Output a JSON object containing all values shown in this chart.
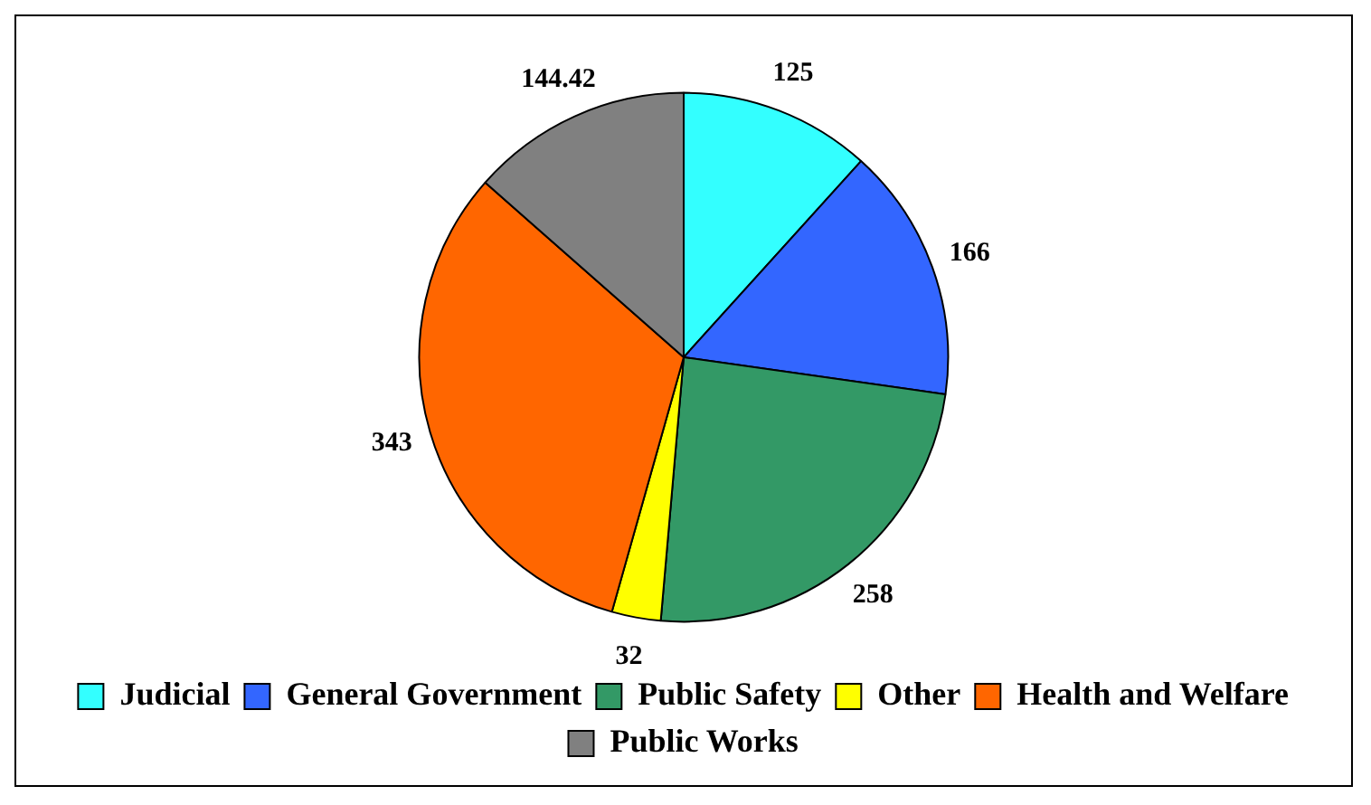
{
  "chart_data": {
    "type": "pie",
    "categories": [
      "Judicial",
      "General Government",
      "Public Safety",
      "Other",
      "Health and Welfare",
      "Public Works"
    ],
    "values": [
      125,
      166,
      258,
      32,
      343,
      144.42
    ],
    "colors": [
      "#33ffff",
      "#3366ff",
      "#339966",
      "#ffff00",
      "#ff6600",
      "#808080"
    ],
    "data_labels": true,
    "legend": "bottom"
  }
}
